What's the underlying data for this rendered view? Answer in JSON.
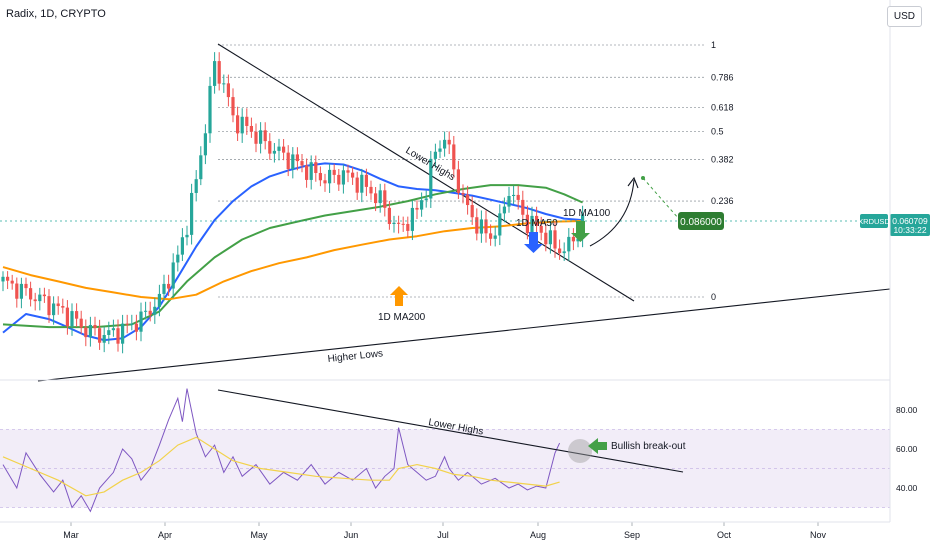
{
  "header": {
    "symbol_line": "Radix, 1D, CRYPTO",
    "currency_button": "USD"
  },
  "price_badge": {
    "ticker": "XRDUSD",
    "price": "0.060709",
    "countdown": "10:33:22"
  },
  "target_badge": "0.086000",
  "annotations": {
    "lower_highs_price": "Lower Highs",
    "higher_lows": "Higher Lows",
    "ma50": "1D MA50",
    "ma100": "1D MA100",
    "ma200": "1D MA200",
    "lower_highs_rsi": "Lower Highs",
    "breakout": "Bullish break-out"
  },
  "colors": {
    "up": "#26a69a",
    "down": "#ef5350",
    "ma50": "#2962ff",
    "ma100": "#43a047",
    "ma200": "#ff9800",
    "rsi": "#7e57c2",
    "rsi_ma": "#f2d24b",
    "price_badge": "#26a69a",
    "target_badge": "#2e7d32",
    "arrow_blue": "#2962ff",
    "arrow_green": "#43a047",
    "arrow_orange": "#ff9800"
  },
  "chart_data": [
    {
      "type": "candlestick",
      "title": "Radix, 1D, CRYPTO",
      "series": [
        {
          "name": "1D MA50",
          "points": [
            [
              0,
              0.0335
            ],
            [
              5,
              0.037
            ],
            [
              10,
              0.036
            ],
            [
              14,
              0.0345
            ],
            [
              18,
              0.033
            ],
            [
              22,
              0.0322
            ],
            [
              26,
              0.0325
            ],
            [
              30,
              0.0345
            ],
            [
              34,
              0.0385
            ],
            [
              38,
              0.045
            ],
            [
              42,
              0.053
            ],
            [
              46,
              0.061
            ],
            [
              50,
              0.0675
            ],
            [
              54,
              0.073
            ],
            [
              58,
              0.077
            ],
            [
              62,
              0.0795
            ],
            [
              66,
              0.0815
            ],
            [
              70,
              0.0825
            ],
            [
              74,
              0.082
            ],
            [
              78,
              0.0795
            ],
            [
              82,
              0.076
            ],
            [
              86,
              0.073
            ],
            [
              90,
              0.072
            ],
            [
              94,
              0.0715
            ],
            [
              98,
              0.0705
            ],
            [
              102,
              0.0695
            ],
            [
              106,
              0.068
            ],
            [
              110,
              0.0665
            ],
            [
              114,
              0.065
            ],
            [
              118,
              0.063
            ],
            [
              122,
              0.0615
            ],
            [
              126,
              0.061
            ]
          ]
        },
        {
          "name": "1D MA100",
          "points": [
            [
              0,
              0.035
            ],
            [
              10,
              0.0345
            ],
            [
              20,
              0.0345
            ],
            [
              28,
              0.035
            ],
            [
              34,
              0.0375
            ],
            [
              40,
              0.044
            ],
            [
              46,
              0.05
            ],
            [
              52,
              0.055
            ],
            [
              58,
              0.0585
            ],
            [
              64,
              0.0605
            ],
            [
              70,
              0.0625
            ],
            [
              76,
              0.064
            ],
            [
              82,
              0.0655
            ],
            [
              88,
              0.0675
            ],
            [
              94,
              0.07
            ],
            [
              100,
              0.072
            ],
            [
              106,
              0.0735
            ],
            [
              112,
              0.0735
            ],
            [
              118,
              0.0725
            ],
            [
              122,
              0.07
            ],
            [
              126,
              0.067
            ]
          ]
        },
        {
          "name": "1D MA200",
          "points": [
            [
              0,
              0.0475
            ],
            [
              6,
              0.0455
            ],
            [
              12,
              0.044
            ],
            [
              18,
              0.0425
            ],
            [
              24,
              0.0415
            ],
            [
              30,
              0.0405
            ],
            [
              36,
              0.04
            ],
            [
              42,
              0.041
            ],
            [
              48,
              0.044
            ],
            [
              54,
              0.0465
            ],
            [
              60,
              0.0485
            ],
            [
              66,
              0.05
            ],
            [
              72,
              0.052
            ],
            [
              78,
              0.0535
            ],
            [
              84,
              0.055
            ],
            [
              90,
              0.056
            ],
            [
              96,
              0.0575
            ],
            [
              102,
              0.0585
            ],
            [
              108,
              0.059
            ],
            [
              114,
              0.06
            ],
            [
              120,
              0.0605
            ],
            [
              126,
              0.0607
            ]
          ]
        }
      ],
      "fib_levels": [
        {
          "label": "1",
          "value": 0.155
        },
        {
          "label": "0.786",
          "value": 0.1305
        },
        {
          "label": "0.618",
          "value": 0.1112
        },
        {
          "label": "0.5",
          "value": 0.0977
        },
        {
          "label": "0.382",
          "value": 0.0842
        },
        {
          "label": "0.236",
          "value": 0.0675
        },
        {
          "label": "0",
          "value": 0.0405
        }
      ],
      "current_price": 0.060709,
      "target": 0.086,
      "x_tick_labels": [
        "Mar",
        "Apr",
        "May",
        "Jun",
        "Jul",
        "Aug",
        "Sep",
        "Oct",
        "Nov"
      ],
      "legend": "none"
    },
    {
      "type": "line",
      "title": "",
      "ylim": [
        25,
        95
      ],
      "y_tick_labels": [
        "80.00",
        "60.00",
        "40.00"
      ],
      "y_ticks": [
        80,
        60,
        40
      ],
      "band": [
        30,
        70
      ],
      "series": [
        {
          "name": "RSI",
          "points": [
            [
              0,
              52
            ],
            [
              3,
              40
            ],
            [
              5,
              58
            ],
            [
              8,
              47
            ],
            [
              11,
              38
            ],
            [
              13,
              44
            ],
            [
              15,
              30
            ],
            [
              17,
              36
            ],
            [
              19,
              28
            ],
            [
              21,
              40
            ],
            [
              24,
              48
            ],
            [
              26,
              60
            ],
            [
              28,
              55
            ],
            [
              30,
              44
            ],
            [
              32,
              50
            ],
            [
              34,
              62
            ],
            [
              36,
              75
            ],
            [
              38,
              86
            ],
            [
              39,
              74
            ],
            [
              40,
              91
            ],
            [
              42,
              68
            ],
            [
              44,
              56
            ],
            [
              46,
              62
            ],
            [
              48,
              48
            ],
            [
              50,
              56
            ],
            [
              52,
              46
            ],
            [
              55,
              52
            ],
            [
              58,
              42
            ],
            [
              61,
              48
            ],
            [
              64,
              44
            ],
            [
              67,
              52
            ],
            [
              70,
              42
            ],
            [
              73,
              48
            ],
            [
              76,
              44
            ],
            [
              79,
              50
            ],
            [
              81,
              40
            ],
            [
              83,
              46
            ],
            [
              85,
              50
            ],
            [
              86,
              71
            ],
            [
              88,
              52
            ],
            [
              90,
              48
            ],
            [
              92,
              44
            ],
            [
              94,
              46
            ],
            [
              96,
              56
            ],
            [
              97,
              50
            ],
            [
              99,
              44
            ],
            [
              101,
              48
            ],
            [
              104,
              42
            ],
            [
              107,
              45
            ],
            [
              110,
              40
            ],
            [
              112,
              42
            ],
            [
              114,
              39
            ],
            [
              116,
              41
            ],
            [
              118,
              40
            ],
            [
              120,
              58
            ],
            [
              121,
              63
            ]
          ]
        },
        {
          "name": "RSI MA",
          "points": [
            [
              0,
              56
            ],
            [
              6,
              50
            ],
            [
              12,
              44
            ],
            [
              18,
              36
            ],
            [
              22,
              38
            ],
            [
              26,
              44
            ],
            [
              30,
              48
            ],
            [
              34,
              54
            ],
            [
              38,
              62
            ],
            [
              42,
              66
            ],
            [
              46,
              60
            ],
            [
              50,
              54
            ],
            [
              56,
              50
            ],
            [
              62,
              48
            ],
            [
              68,
              46
            ],
            [
              74,
              45
            ],
            [
              80,
              44
            ],
            [
              84,
              44
            ],
            [
              86,
              50
            ],
            [
              90,
              52
            ],
            [
              94,
              50
            ],
            [
              98,
              47
            ],
            [
              102,
              46
            ],
            [
              106,
              44
            ],
            [
              110,
              43
            ],
            [
              114,
              42
            ],
            [
              118,
              41
            ],
            [
              121,
              43
            ]
          ]
        }
      ]
    }
  ]
}
